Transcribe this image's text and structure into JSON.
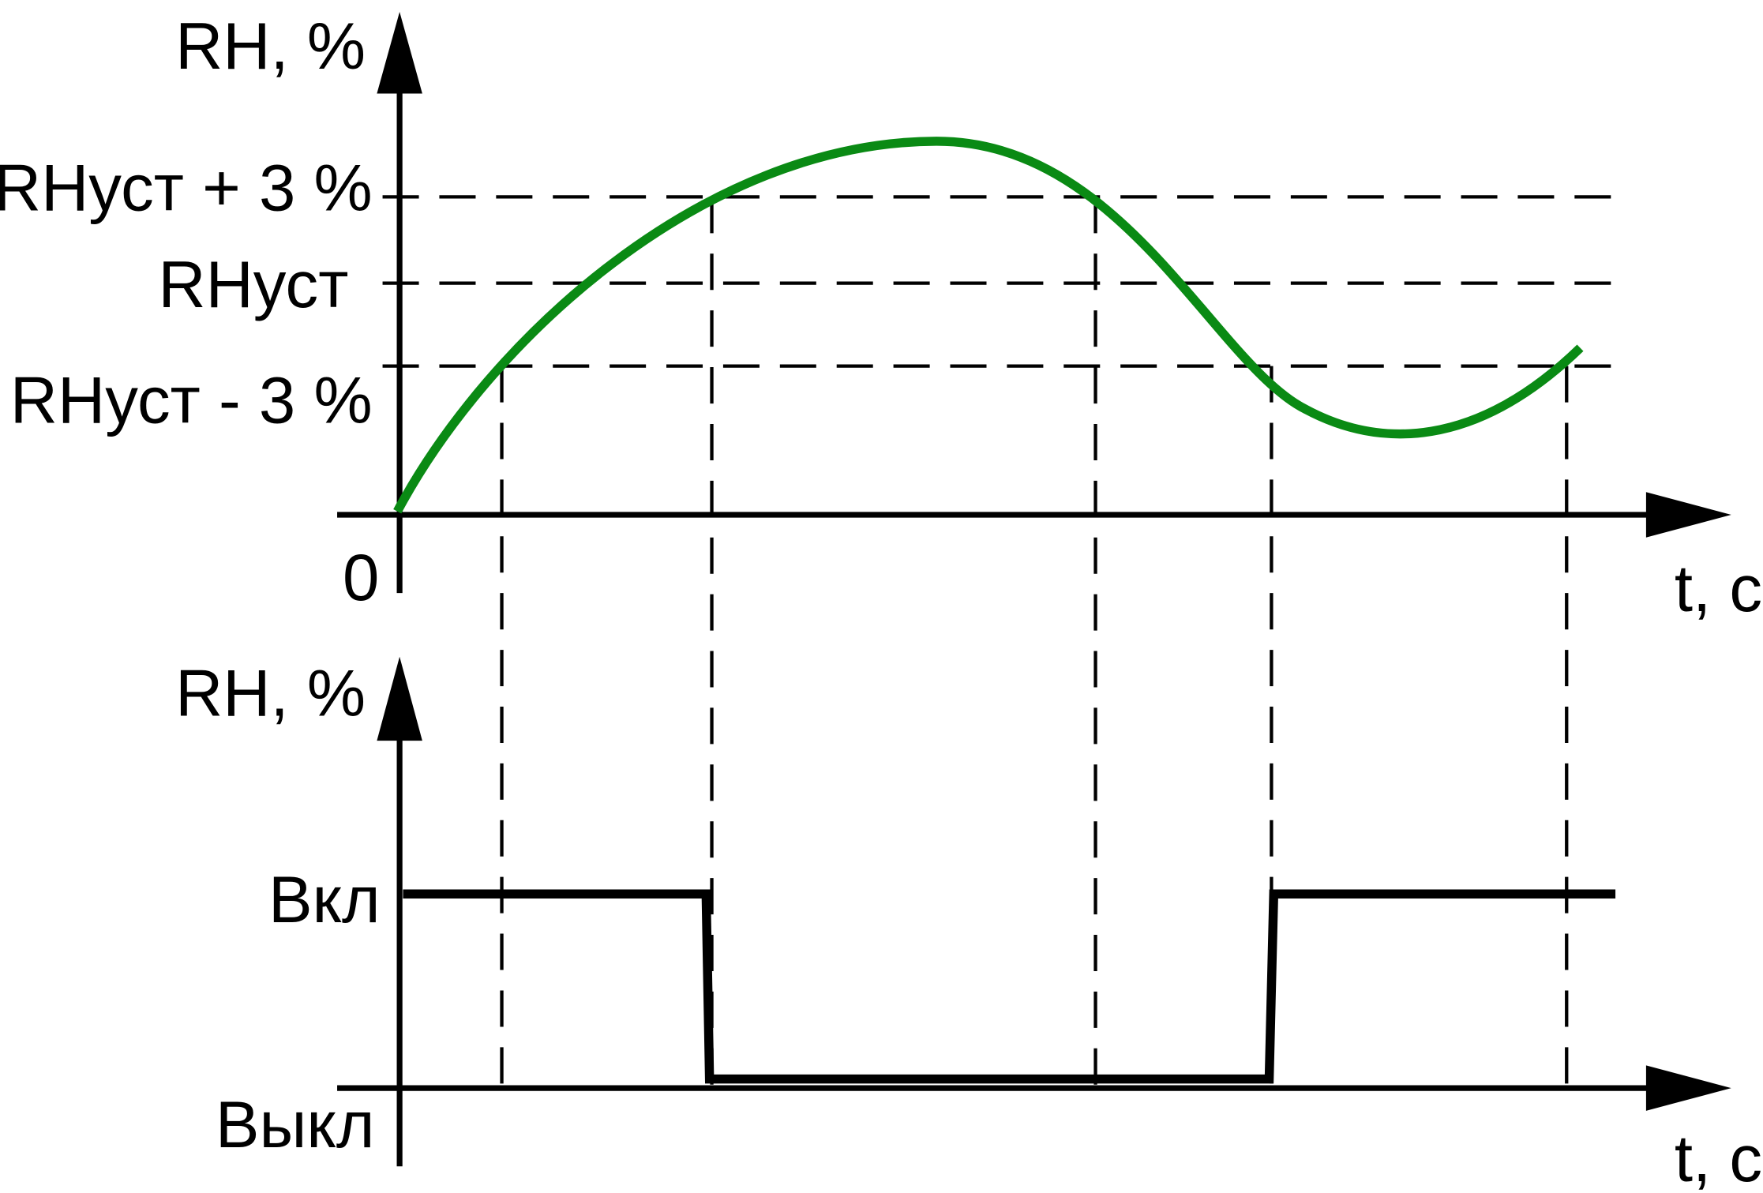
{
  "top_chart": {
    "y_axis_label": "RH, %",
    "levels": [
      "RHуст + 3 %",
      "RHуст",
      "RHуст - 3 %"
    ],
    "origin": "0",
    "x_axis_label": "t, c"
  },
  "bottom_chart": {
    "y_axis_label": "RH, %",
    "states": [
      "Вкл",
      "Выкл"
    ],
    "x_axis_label": "t, c"
  }
}
